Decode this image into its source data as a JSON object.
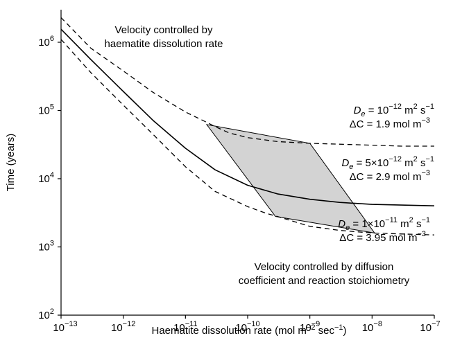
{
  "chart_data": {
    "type": "line",
    "xlabel": "Haematite dissolution rate (mol m⁻² sec⁻¹)",
    "ylabel": "Time (years)",
    "xscale": "log",
    "yscale": "log",
    "xlim": [
      1e-13,
      1e-07
    ],
    "ylim": [
      100,
      3000000
    ],
    "x_ticks": [
      {
        "value": 1e-13,
        "mantissa": "10",
        "exp": "−13"
      },
      {
        "value": 1e-12,
        "mantissa": "10",
        "exp": "−12"
      },
      {
        "value": 1e-11,
        "mantissa": "10",
        "exp": "−11"
      },
      {
        "value": 1e-10,
        "mantissa": "10",
        "exp": "−10"
      },
      {
        "value": 1e-09,
        "mantissa": "10",
        "exp": "−9"
      },
      {
        "value": 1e-08,
        "mantissa": "10",
        "exp": "−8"
      },
      {
        "value": 1e-07,
        "mantissa": "10",
        "exp": "−7"
      }
    ],
    "y_ticks": [
      {
        "value": 100,
        "mantissa": "10",
        "exp": "2"
      },
      {
        "value": 1000,
        "mantissa": "10",
        "exp": "3"
      },
      {
        "value": 10000,
        "mantissa": "10",
        "exp": "4"
      },
      {
        "value": 100000,
        "mantissa": "10",
        "exp": "5"
      },
      {
        "value": 1000000,
        "mantissa": "10",
        "exp": "6"
      }
    ],
    "grid": false,
    "colors": {
      "line": "#000000",
      "shade": "#d3d3d3",
      "shade_stroke": "#000000"
    },
    "series": [
      {
        "style": "dashed",
        "x": [
          1e-13,
          3e-13,
          1e-12,
          3e-12,
          1e-11,
          2e-11,
          3e-11,
          5e-11,
          1e-10,
          3e-10,
          1e-09,
          3e-09,
          1e-08,
          3e-08,
          1e-07
        ],
        "y": [
          2300000,
          820000,
          380000,
          185000,
          95000,
          70000,
          58000,
          47000,
          40000,
          35000,
          33000,
          32000,
          31000,
          30000,
          30000
        ]
      },
      {
        "style": "solid",
        "x": [
          1e-13,
          3e-13,
          1e-12,
          3e-12,
          1e-11,
          3e-11,
          1e-10,
          3e-10,
          1e-09,
          3e-09,
          1e-08,
          3e-08,
          1e-07
        ],
        "y": [
          1550000,
          560000,
          190000,
          72000,
          28000,
          13500,
          8000,
          6000,
          5000,
          4500,
          4200,
          4100,
          4000
        ]
      },
      {
        "style": "dashed",
        "x": [
          1e-13,
          3e-13,
          1e-12,
          3e-12,
          1e-11,
          3e-11,
          1e-10,
          2e-10,
          3e-10,
          1e-09,
          3e-09,
          1e-08,
          3e-08,
          1e-07
        ],
        "y": [
          1100000,
          360000,
          120000,
          45000,
          15000,
          6500,
          3900,
          3100,
          2800,
          2000,
          1750,
          1600,
          1550,
          1500
        ]
      }
    ],
    "shaded_region": {
      "x": [
        2.2e-11,
        1e-09,
        1.1e-08,
        2.8e-10
      ],
      "y": [
        62000,
        33000,
        1600,
        2800
      ]
    },
    "annotations": {
      "top_note": [
        "Velocity controlled by",
        "haematite dissolution rate"
      ],
      "bottom_note": [
        "Velocity controlled by diffusion",
        "coefficient and reaction stoichiometry"
      ],
      "curve_labels": [
        {
          "de_prefix": "D",
          "de_sub": "e",
          "de_value": " = 10",
          "de_exp": "−12",
          "de_units": " m",
          "de_units_exp": "2",
          "de_units_tail": " s",
          "de_units_tail_exp": "−1",
          "dc": "ΔC = 1.9 mol m",
          "dc_exp": "−3"
        },
        {
          "de_prefix": "D",
          "de_sub": "e",
          "de_value": " = 5×10",
          "de_exp": "−12",
          "de_units": " m",
          "de_units_exp": "2",
          "de_units_tail": " s",
          "de_units_tail_exp": "−1",
          "dc": "ΔC = 2.9 mol m",
          "dc_exp": "−3"
        },
        {
          "de_prefix": "D",
          "de_sub": "e",
          "de_value": " = 1×10",
          "de_exp": "−11",
          "de_units": " m",
          "de_units_exp": "2",
          "de_units_tail": " s",
          "de_units_tail_exp": "−1",
          "dc": "ΔC = 3.95 mol m",
          "dc_exp": "−3"
        }
      ]
    }
  }
}
